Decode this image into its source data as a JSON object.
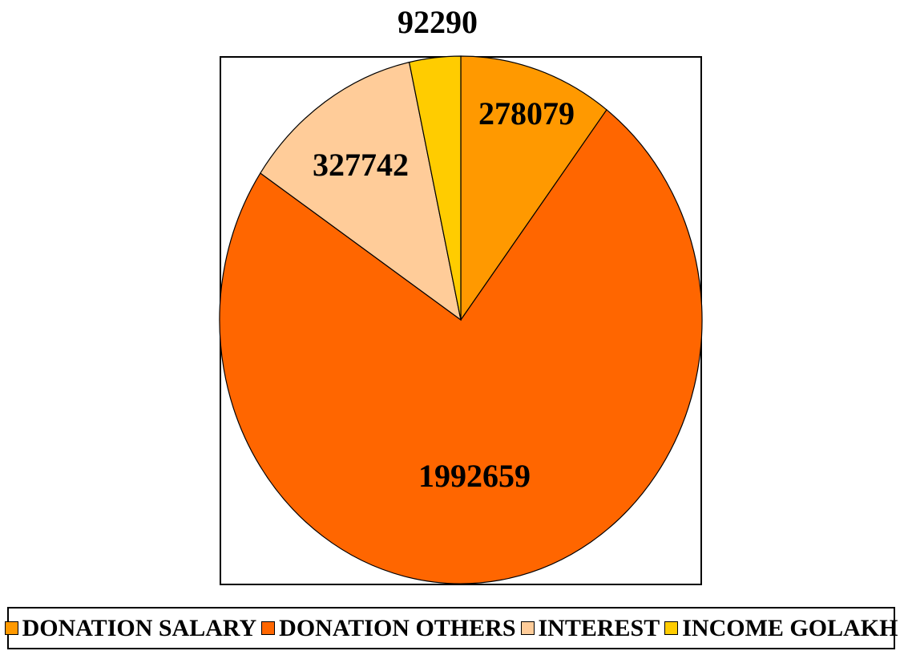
{
  "chart_data": {
    "type": "pie",
    "title": "",
    "series": [
      {
        "name": "DONATION SALARY",
        "value": 278079,
        "color": "#FF9900"
      },
      {
        "name": "DONATION OTHERS",
        "value": 1992659,
        "color": "#FF6600"
      },
      {
        "name": "INTEREST",
        "value": 327742,
        "color": "#FFCC99"
      },
      {
        "name": "INCOME GOLAKH",
        "value": 92290,
        "color": "#FFCC00"
      }
    ],
    "start": "12 o'clock",
    "direction": "clockwise",
    "legend_position": "bottom"
  }
}
